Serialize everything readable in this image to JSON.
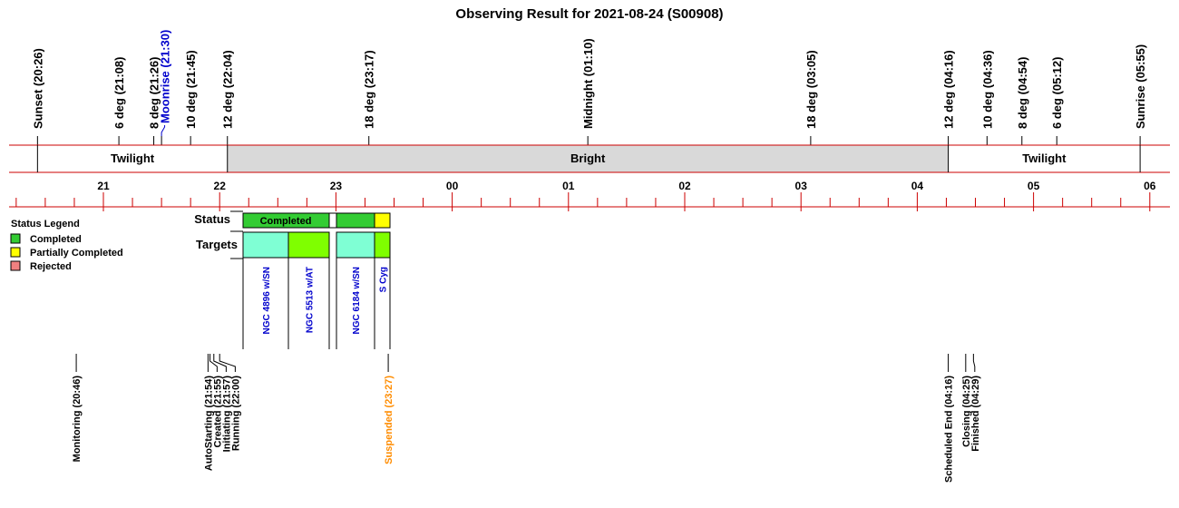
{
  "title": "Observing Result for 2021-08-24 (S00908)",
  "top_events": [
    "Sunset (20:26)",
    "6 deg (21:08)",
    "8 deg (21:26)",
    "Moonrise (21:30)",
    "10 deg (21:45)",
    "12 deg (22:04)",
    "18 deg (23:17)",
    "Midnight (01:10)",
    "18 deg (03:05)",
    "12 deg (04:16)",
    "10 deg (04:36)",
    "8 deg (04:54)",
    "6 deg (05:12)",
    "Sunrise (05:55)"
  ],
  "bands": [
    "Twilight",
    "Bright",
    "Twilight"
  ],
  "hours": [
    "21",
    "22",
    "23",
    "00",
    "01",
    "02",
    "03",
    "04",
    "05",
    "06"
  ],
  "legend": {
    "title": "Status Legend",
    "items": [
      "Completed",
      "Partially Completed",
      "Rejected"
    ]
  },
  "rows": {
    "status": "Status",
    "targets": "Targets"
  },
  "status_label": "Completed",
  "targets": [
    "NGC 4896 w/SN",
    "NGC 5513 w/AT",
    "NGC 6184 w/SN",
    "S Cyg"
  ],
  "bottom_events": [
    "Monitoring (20:46)",
    "AutoStarting (21:54)",
    "Created (21:55)",
    "Initiating (21:57)",
    "Running (22:00)",
    "Suspended (23:27)",
    "Scheduled End (04:16)",
    "Closing (04:25)",
    "Finished (04:29)"
  ]
}
